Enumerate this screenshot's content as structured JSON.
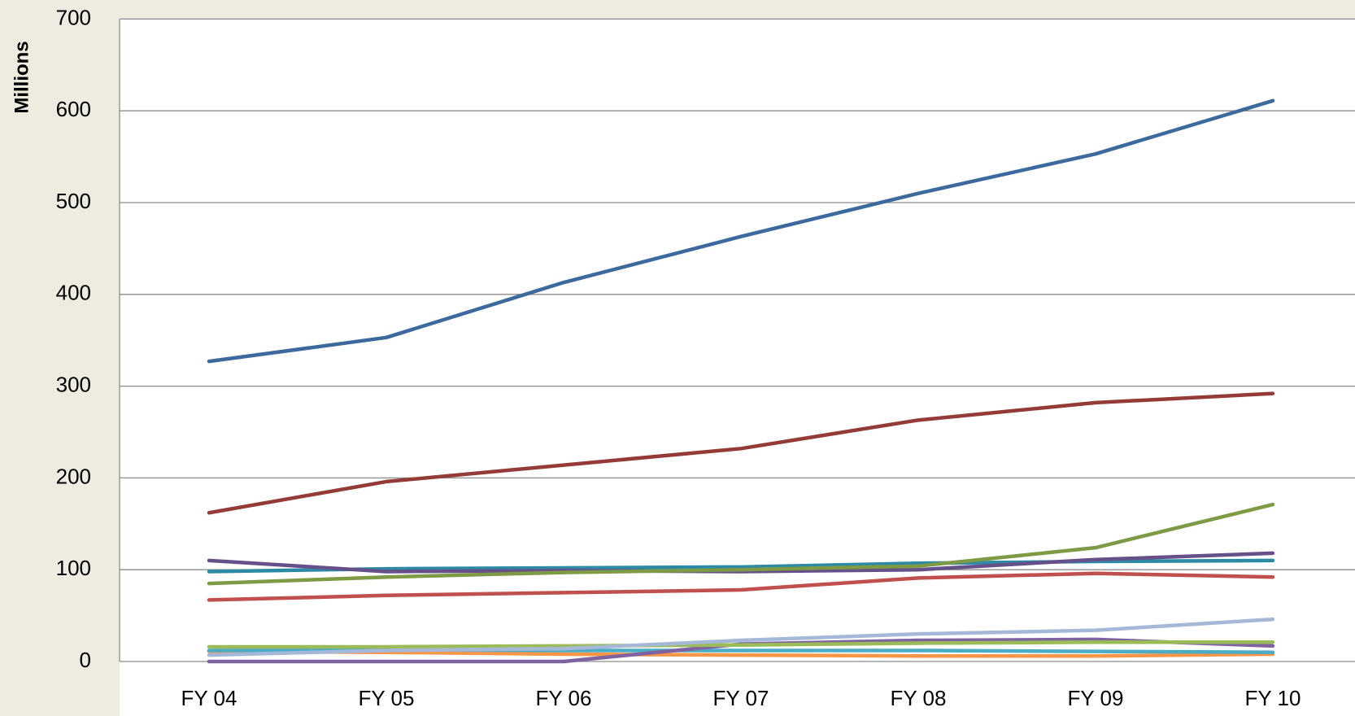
{
  "chart_data": {
    "type": "line",
    "y_label": "Millions",
    "categories": [
      "FY 04",
      "FY 05",
      "FY 06",
      "FY 07",
      "FY 08",
      "FY 09",
      "FY 10"
    ],
    "series": [
      {
        "color": "#3d6a9e",
        "values": [
          327,
          353,
          413,
          463,
          510,
          553,
          611
        ]
      },
      {
        "color": "#943b37",
        "values": [
          162,
          196,
          214,
          232,
          263,
          282,
          292
        ]
      },
      {
        "color": "#7e9a44",
        "values": [
          85,
          92,
          97,
          100,
          104,
          124,
          171
        ]
      },
      {
        "color": "#66508a",
        "values": [
          110,
          98,
          99,
          98,
          100,
          111,
          118
        ]
      },
      {
        "color": "#2c8aa5",
        "values": [
          98,
          101,
          102,
          103,
          107,
          109,
          110
        ]
      },
      {
        "color": "#c0504d",
        "values": [
          67,
          72,
          75,
          78,
          91,
          96,
          92
        ]
      },
      {
        "color": "#a6b8d8",
        "values": [
          7,
          12,
          14,
          23,
          30,
          34,
          46
        ]
      },
      {
        "color": "#9bbb59",
        "values": [
          16,
          16,
          17,
          18,
          20,
          21,
          21
        ]
      },
      {
        "color": "#7f62a0",
        "values": [
          0,
          0,
          0,
          19,
          23,
          24,
          17
        ]
      },
      {
        "color": "#4bacc6",
        "values": [
          12,
          13,
          12,
          12,
          12,
          11,
          10
        ]
      },
      {
        "color": "#f79646",
        "values": [
          11,
          10,
          8,
          7,
          6,
          6,
          8
        ]
      }
    ],
    "ylim": [
      0,
      700
    ],
    "yticks": [
      0,
      100,
      200,
      300,
      400,
      500,
      600,
      700
    ],
    "grid": true
  }
}
